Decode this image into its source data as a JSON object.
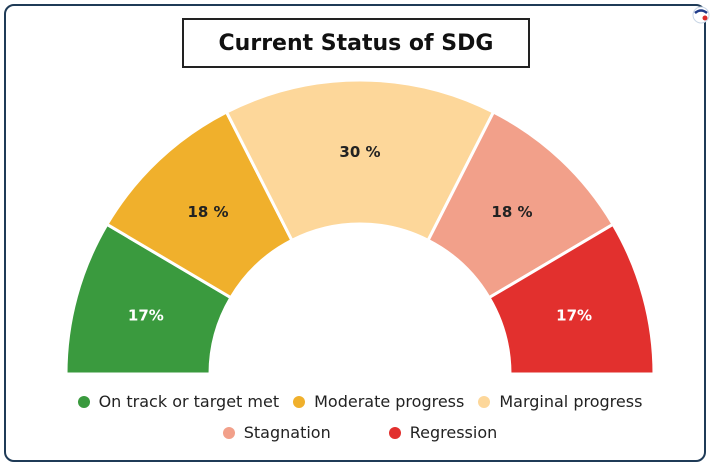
{
  "chart_data": {
    "type": "pie",
    "title": "Current Status of SDG",
    "variant": "half-donut",
    "categories": [
      "On track or target met",
      "Moderate progress",
      "Marginal progress",
      "Stagnation",
      "Regression"
    ],
    "values": [
      17,
      18,
      30,
      18,
      17
    ],
    "labels": [
      "17%",
      "18 %",
      "30 %",
      "18 %",
      "17%"
    ],
    "colors": [
      "#3a9a3e",
      "#f0b02c",
      "#fdd79a",
      "#f2a08a",
      "#e2302e"
    ],
    "label_colors": [
      "#ffffff",
      "#222222",
      "#222222",
      "#222222",
      "#ffffff"
    ],
    "legend_position": "bottom"
  }
}
